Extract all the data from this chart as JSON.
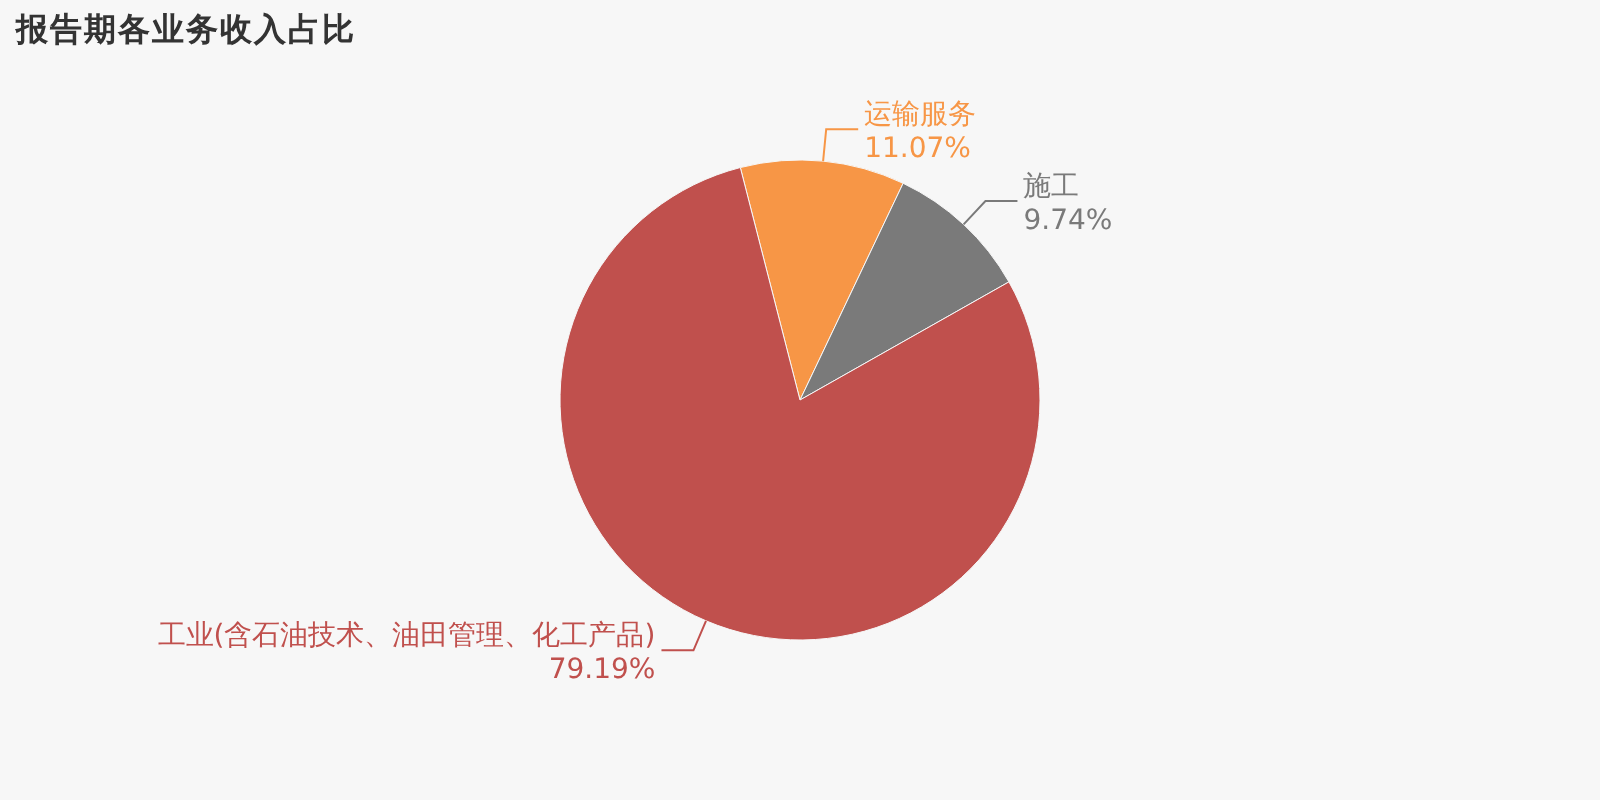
{
  "chart_data": {
    "type": "pie",
    "title": "报告期各业务收入占比",
    "categories": [
      "运输服务",
      "施工",
      "工业(含石油技术、油田管理、化工产品)"
    ],
    "values": [
      11.07,
      9.74,
      79.19
    ],
    "colors": [
      "#f79646",
      "#7a7a7a",
      "#c0504d"
    ],
    "value_labels": [
      "11.07%",
      "9.74%",
      "79.19%"
    ]
  }
}
